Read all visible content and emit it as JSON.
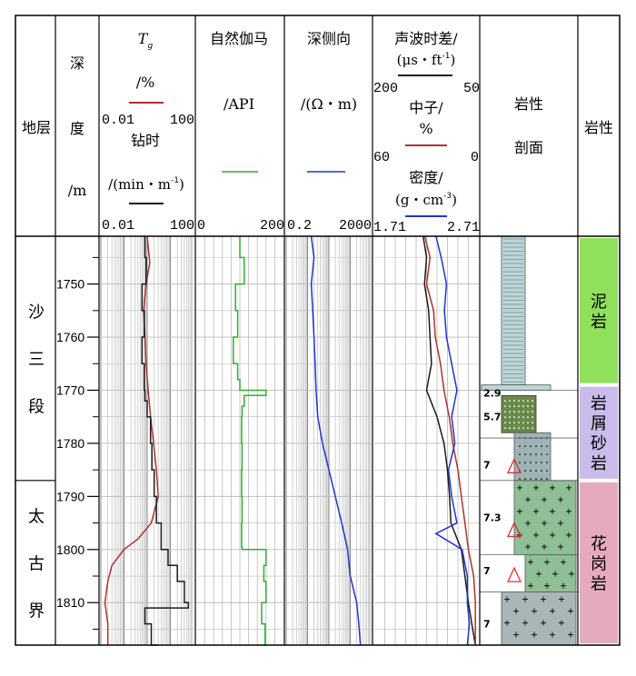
{
  "headers": {
    "formation": "地层",
    "depth": [
      "深",
      "度",
      "/m"
    ],
    "track1": {
      "tg_symbol": "T",
      "tg_sub": "g",
      "tg_unit": "/%",
      "tg_min": "0.01",
      "tg_max": "100",
      "rop_title": "钻时",
      "rop_unit": "/(min・m",
      "rop_sup": "-1",
      "rop_unit_end": ")",
      "rop_min": "0.01",
      "rop_max": "100"
    },
    "track2": {
      "title": "自然伽马",
      "unit": "/API",
      "min": "0",
      "max": "200"
    },
    "track3": {
      "title": "深侧向",
      "unit": "/(Ω・m)",
      "min": "0.2",
      "max": "2000"
    },
    "track4": {
      "ac_title": "声波时差/",
      "ac_unit": "(μs・ft",
      "ac_sup": "-1",
      "ac_unit_end": ")",
      "ac_min": "200",
      "ac_max": "50",
      "cnl_title": "中子/",
      "cnl_unit": "%",
      "cnl_min": "60",
      "cnl_max": "0",
      "den_title": "密度/",
      "den_unit": "(g・cm",
      "den_sup": "-3",
      "den_unit_end": ")",
      "den_min": "1.71",
      "den_max": "2.71"
    },
    "profile": [
      "岩性",
      "剖面"
    ],
    "lithology": "岩性"
  },
  "formations": [
    {
      "name": [
        "沙",
        "三",
        "段"
      ],
      "top": 1741,
      "bottom": 1787
    },
    {
      "name": [
        "太",
        "古",
        "界"
      ],
      "top": 1787,
      "bottom": 1818
    }
  ],
  "profile_tags": [
    {
      "text": "2.9",
      "depth": 1770.5
    },
    {
      "text": "5.7",
      "depth": 1775
    },
    {
      "text": "7",
      "depth": 1784
    },
    {
      "text": "7.3",
      "depth": 1794
    },
    {
      "text": "7",
      "depth": 1804
    },
    {
      "text": "7",
      "depth": 1814
    }
  ],
  "lithology": [
    {
      "label": [
        "泥",
        "岩"
      ],
      "top": 1741,
      "bottom": 1769,
      "color": "#8fe05a"
    },
    {
      "label": [
        "岩",
        "屑",
        "砂",
        "岩"
      ],
      "top": 1769,
      "bottom": 1787,
      "color": "#c9bbea"
    },
    {
      "label": [
        "花",
        "岗",
        "岩"
      ],
      "top": 1787,
      "bottom": 1818,
      "color": "#e6aabf"
    }
  ],
  "colors": {
    "tg": "#b03030",
    "rop": "#1a1a1a",
    "gr": "#2db02d",
    "rd": "#2233cc",
    "ac": "#1a1a1a",
    "cnl": "#b03030",
    "den": "#2233cc"
  },
  "chart_data": {
    "type": "line",
    "depth_axis": {
      "label": "深度/m",
      "range": [
        1741,
        1818
      ],
      "ticks": [
        "1750",
        "1760",
        "1770",
        "1780",
        "1790",
        "1800",
        "1810"
      ],
      "inverted": true
    },
    "tracks": [
      {
        "name": "Tg/% & 钻时/(min·m-1)",
        "scale": "log",
        "range": [
          0.01,
          100
        ],
        "series": [
          {
            "name": "Tg",
            "depth": [
              1741,
              1746,
              1750,
              1755,
              1760,
              1765,
              1770,
              1775,
              1780,
              1785,
              1790,
              1795,
              1798,
              1800,
              1803,
              1806,
              1810,
              1814,
              1818
            ],
            "values": [
              1.0,
              1.3,
              0.9,
              0.7,
              0.8,
              0.9,
              1.1,
              1.4,
              1.9,
              2.5,
              3.0,
              1.5,
              0.4,
              0.1,
              0.03,
              0.02,
              0.015,
              0.02,
              0.02
            ]
          },
          {
            "name": "钻时",
            "depth": [
              1741,
              1745,
              1750,
              1755,
              1760,
              1765,
              1770,
              1772,
              1775,
              1780,
              1785,
              1790,
              1795,
              1800,
              1803,
              1806,
              1810,
              1811,
              1814,
              1818
            ],
            "values": [
              0.8,
              0.9,
              0.6,
              0.75,
              0.6,
              0.75,
              0.8,
              1.0,
              1.4,
              1.6,
              2.0,
              2.5,
              4.0,
              8.0,
              20.0,
              40.0,
              60.0,
              0.8,
              1.5,
              3.0
            ]
          }
        ]
      },
      {
        "name": "自然伽马/API",
        "scale": "linear",
        "range": [
          0,
          200
        ],
        "series": [
          {
            "name": "自然伽马",
            "depth": [
              1741,
              1745,
              1750,
              1755,
              1760,
              1765,
              1768,
              1770,
              1771,
              1773,
              1775,
              1780,
              1785,
              1790,
              1795,
              1799.5,
              1800,
              1803,
              1806,
              1810,
              1814,
              1818
            ],
            "values": [
              100,
              110,
              90,
              95,
              85,
              95,
              100,
              160,
              110,
              105,
              104,
              105,
              104,
              105,
              104,
              105,
              160,
              155,
              160,
              150,
              158,
              155
            ]
          }
        ]
      },
      {
        "name": "深侧向/(Ω·m)",
        "scale": "log",
        "range": [
          0.2,
          2000
        ],
        "series": [
          {
            "name": "深侧向",
            "depth": [
              1741,
              1745,
              1750,
              1755,
              1760,
              1765,
              1770,
              1775,
              1780,
              1785,
              1790,
              1795,
              1800,
              1805,
              1810,
              1814,
              1818
            ],
            "values": [
              3.0,
              4.0,
              3.0,
              3.5,
              4.0,
              4.5,
              5.0,
              6.0,
              10.0,
              20.0,
              40.0,
              80.0,
              150.0,
              200.0,
              400.0,
              500.0,
              600.0
            ]
          }
        ]
      },
      {
        "name": "声波时差/中子/密度",
        "scale": "linear",
        "series": [
          {
            "name": "声波时差",
            "range": [
              200,
              50
            ],
            "depth": [
              1741,
              1745,
              1750,
              1755,
              1760,
              1765,
              1770,
              1775,
              1780,
              1785,
              1790,
              1795,
              1800,
              1805,
              1810,
              1814,
              1818
            ],
            "values": [
              130,
              125,
              128,
              122,
              120,
              118,
              125,
              110,
              100,
              95,
              92,
              90,
              75,
              70,
              65,
              60,
              55
            ]
          },
          {
            "name": "中子",
            "range": [
              60,
              0
            ],
            "depth": [
              1741,
              1745,
              1750,
              1755,
              1760,
              1765,
              1770,
              1775,
              1780,
              1785,
              1790,
              1795,
              1800,
              1805,
              1810,
              1814,
              1818
            ],
            "values": [
              31,
              28,
              30,
              26,
              25,
              22,
              20,
              17,
              15,
              12,
              10,
              8,
              6,
              3,
              2,
              2,
              2
            ]
          },
          {
            "name": "密度",
            "range": [
              1.71,
              2.71
            ],
            "depth": [
              1741,
              1745,
              1750,
              1755,
              1760,
              1765,
              1770,
              1775,
              1780,
              1785,
              1790,
              1795,
              1797,
              1800,
              1805,
              1810,
              1814,
              1818
            ],
            "values": [
              2.3,
              2.35,
              2.4,
              2.38,
              2.4,
              2.45,
              2.5,
              2.45,
              2.48,
              2.42,
              2.45,
              2.5,
              2.3,
              2.55,
              2.6,
              2.6,
              2.62,
              2.6
            ]
          }
        ]
      }
    ]
  }
}
